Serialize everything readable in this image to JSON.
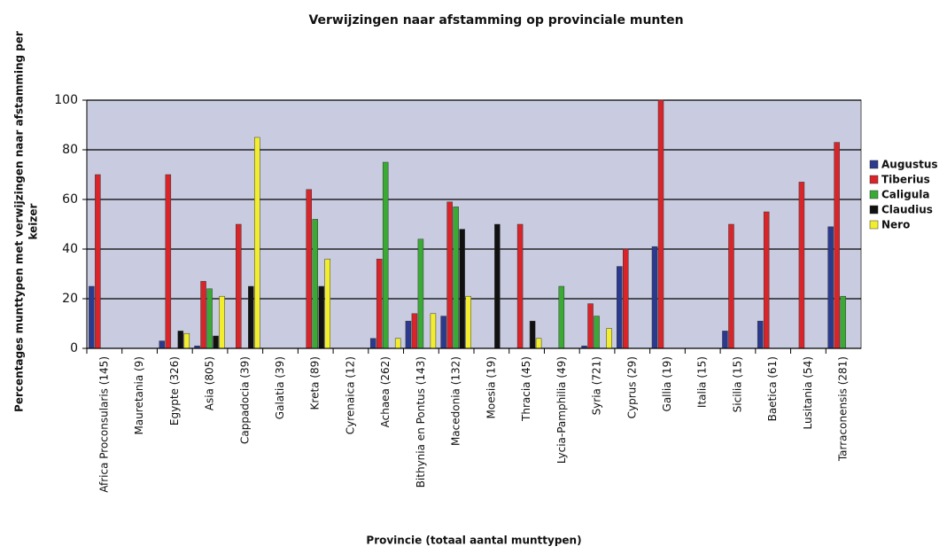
{
  "chart_data": {
    "type": "bar",
    "title": "Verwijzingen naar afstamming op provinciale munten",
    "xlabel": "Provincie (totaal aantal munttypen)",
    "ylabel": [
      "Percentages munttypen met verwijzingen naar afstamming per",
      "keizer"
    ],
    "categories": [
      "Africa Proconsularis (145)",
      "Mauretania (9)",
      "Egypte (326)",
      "Asia (805)",
      "Cappadocia (39)",
      "Galatia (39)",
      "Kreta (89)",
      "Cyrenaica (12)",
      "Achaea (262)",
      "Bithynia en Pontus (143)",
      "Macedonia (132)",
      "Moesia (19)",
      "Thracia (45)",
      "Lycia-Pamphilia (49)",
      "Syria (721)",
      "Cyprus (29)",
      "Gallia (19)",
      "Italia (15)",
      "Sicilia (15)",
      "Baetica (61)",
      "Lusitania (54)",
      "Tarraconensis (281)"
    ],
    "series": [
      {
        "name": "Augustus",
        "color": "#2b3a8f",
        "values": [
          25,
          0,
          3,
          1,
          0,
          0,
          0,
          0,
          4,
          11,
          13,
          0,
          0,
          0,
          1,
          33,
          41,
          0,
          7,
          11,
          0,
          49
        ]
      },
      {
        "name": "Tiberius",
        "color": "#d9252a",
        "values": [
          70,
          0,
          70,
          27,
          50,
          0,
          64,
          0,
          36,
          14,
          59,
          0,
          50,
          0,
          18,
          40,
          100,
          0,
          50,
          55,
          67,
          83
        ]
      },
      {
        "name": "Caligula",
        "color": "#3aaa35",
        "values": [
          0,
          0,
          0,
          24,
          0,
          0,
          52,
          0,
          75,
          44,
          57,
          0,
          0,
          25,
          13,
          0,
          0,
          0,
          0,
          0,
          0,
          21
        ]
      },
      {
        "name": "Claudius",
        "color": "#111111",
        "values": [
          0,
          0,
          7,
          5,
          25,
          0,
          25,
          0,
          0,
          0,
          48,
          50,
          11,
          0,
          0,
          0,
          0,
          0,
          0,
          0,
          0,
          0
        ]
      },
      {
        "name": "Nero",
        "color": "#f2ee2e",
        "values": [
          0,
          0,
          6,
          21,
          85,
          0,
          36,
          0,
          4,
          14,
          21,
          0,
          4,
          0,
          8,
          0,
          0,
          0,
          0,
          0,
          0,
          0
        ]
      }
    ],
    "ylim": [
      0,
      100
    ],
    "yticks": [
      0,
      20,
      40,
      60,
      80,
      100
    ],
    "grid": true,
    "legend": "right"
  }
}
